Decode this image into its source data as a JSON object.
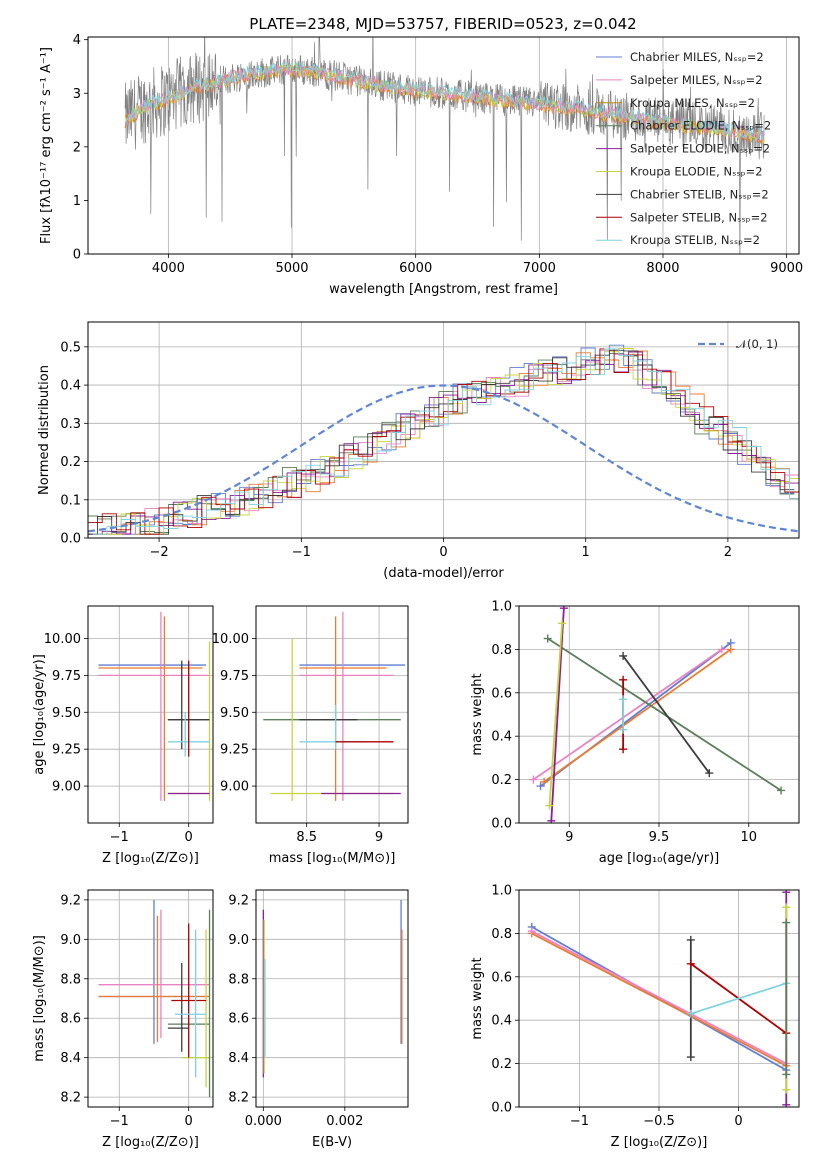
{
  "colors": {
    "chabrier_miles": "#5f7fd4",
    "salpeter_miles": "#e983c2",
    "kroupa_miles": "#b8860b",
    "chabrier_elodie": "#5a7f5a",
    "salpeter_elodie": "#8b1f9b",
    "kroupa_elodie": "#c8d43c",
    "chabrier_stelib": "#3c3c3c",
    "salpeter_stelib": "#b00000",
    "kroupa_stelib": "#7fd3e0",
    "data": "#808080",
    "fit_orange": "#ec7b2f",
    "gauss": "#5f87d4"
  },
  "chart_data": [
    {
      "id": "spectrum",
      "type": "line",
      "title": "PLATE=2348, MJD=53757, FIBERID=0523, z=0.042",
      "xlabel": "wavelength [Angstrom, rest frame]",
      "ylabel": "Flux [fλ10⁻¹⁷ erg cm⁻² s⁻¹ A⁻¹]",
      "xlim": [
        3350,
        9100
      ],
      "ylim": [
        0,
        4.05
      ],
      "xticks": [
        4000,
        5000,
        6000,
        7000,
        8000,
        9000
      ],
      "yticks": [
        0,
        1,
        2,
        3,
        4
      ],
      "legend_position": "upper-right",
      "legend": [
        "Chabrier MILES, Nₛₛₚ=2",
        "Salpeter MILES, Nₛₛₚ=2",
        "Kroupa MILES, Nₛₛₚ=2",
        "Chabrier ELODIE, Nₛₛₚ=2",
        "Salpeter ELODIE, Nₛₛₚ=2",
        "Kroupa ELODIE, Nₛₛₚ=2",
        "Chabrier STELIB, Nₛₛₚ=2",
        "Salpeter STELIB, Nₛₛₚ=2",
        "Kroupa STELIB, Nₛₛₚ=2"
      ],
      "continuum": [
        [
          3650,
          2.5
        ],
        [
          3800,
          2.75
        ],
        [
          4000,
          2.9
        ],
        [
          4200,
          3.1
        ],
        [
          4400,
          3.2
        ],
        [
          4600,
          3.35
        ],
        [
          5000,
          3.45
        ],
        [
          5200,
          3.4
        ],
        [
          5600,
          3.2
        ],
        [
          6000,
          3.05
        ],
        [
          6400,
          2.95
        ],
        [
          6800,
          2.85
        ],
        [
          7200,
          2.75
        ],
        [
          7600,
          2.6
        ],
        [
          8000,
          2.45
        ],
        [
          8400,
          2.35
        ],
        [
          8800,
          2.2
        ]
      ]
    },
    {
      "id": "residuals",
      "type": "histogram",
      "xlabel": "(data-model)/error",
      "ylabel": "Normed distribution",
      "xlim": [
        -2.5,
        2.5
      ],
      "ylim": [
        0,
        0.565
      ],
      "xticks": [
        -2,
        -1,
        0,
        1,
        2
      ],
      "yticks": [
        0.0,
        0.1,
        0.2,
        0.3,
        0.4,
        0.5
      ],
      "legend": [
        "𝒩(0, 1)"
      ],
      "bin_width": 0.1,
      "base_values": [
        0.02,
        0.025,
        0.03,
        0.035,
        0.04,
        0.045,
        0.055,
        0.065,
        0.075,
        0.085,
        0.095,
        0.105,
        0.115,
        0.13,
        0.145,
        0.16,
        0.175,
        0.19,
        0.21,
        0.23,
        0.25,
        0.27,
        0.29,
        0.31,
        0.33,
        0.35,
        0.365,
        0.38,
        0.39,
        0.4,
        0.41,
        0.42,
        0.43,
        0.44,
        0.45,
        0.46,
        0.47,
        0.465,
        0.45,
        0.43,
        0.4,
        0.37,
        0.34,
        0.31,
        0.28,
        0.25,
        0.22,
        0.19,
        0.16,
        0.13
      ]
    },
    {
      "id": "age_vs_Z",
      "type": "scatter",
      "xlabel": "Z [log₁₀(Z/Z⊙)]",
      "ylabel": "age  [log₁₀(age/yr)]",
      "xlim": [
        -1.45,
        0.35
      ],
      "ylim": [
        8.75,
        10.22
      ],
      "xticks": [
        -1,
        0
      ],
      "yticks": [
        9.0,
        9.25,
        9.5,
        9.75,
        10.0
      ],
      "points": [
        {
          "x": -0.3,
          "y": 9.82,
          "xe": [
            -1.3,
            0.25
          ],
          "ye": [
            9.82,
            9.82
          ],
          "c": "chabrier_miles"
        },
        {
          "x": -0.4,
          "y": 9.75,
          "xe": [
            -1.3,
            0.3
          ],
          "ye": [
            8.9,
            10.18
          ],
          "c": "salpeter_miles"
        },
        {
          "x": -0.35,
          "y": 9.8,
          "xe": [
            -1.3,
            0.2
          ],
          "ye": [
            8.9,
            10.15
          ],
          "c": "fit_orange"
        },
        {
          "x": 0.2,
          "y": 9.45,
          "xe": [
            -0.3,
            0.3
          ],
          "ye": [
            9.45,
            9.45
          ],
          "c": "chabrier_elodie"
        },
        {
          "x": 0.3,
          "y": 8.95,
          "xe": [
            -0.3,
            0.3
          ],
          "ye": [
            8.9,
            9.98
          ],
          "c": "kroupa_elodie"
        },
        {
          "x": -0.1,
          "y": 9.45,
          "xe": [
            -0.3,
            0.3
          ],
          "ye": [
            9.25,
            9.85
          ],
          "c": "chabrier_stelib"
        },
        {
          "x": -0.05,
          "y": 9.3,
          "xe": [
            -0.3,
            0.3
          ],
          "ye": [
            9.2,
            9.5
          ],
          "c": "kroupa_stelib"
        },
        {
          "x": 0.0,
          "y": 9.6,
          "xe": [
            0.0,
            0.0
          ],
          "ye": [
            9.2,
            9.85
          ],
          "c": "salpeter_stelib"
        },
        {
          "x": 0.0,
          "y": 8.95,
          "xe": [
            -0.3,
            0.3
          ],
          "ye": [
            8.95,
            8.95
          ],
          "c": "salpeter_elodie"
        }
      ]
    },
    {
      "id": "age_vs_mass",
      "type": "scatter",
      "xlabel": "mass [log₁₀(M/M⊙)]",
      "ylabel": "",
      "xlim": [
        8.15,
        9.2
      ],
      "ylim": [
        8.75,
        10.22
      ],
      "xticks": [
        8.5,
        9.0
      ],
      "yticks": [
        9.0,
        9.25,
        9.5,
        9.75,
        10.0
      ],
      "points": [
        {
          "x": 8.7,
          "y": 9.82,
          "xe": [
            8.45,
            9.18
          ],
          "ye": [
            9.82,
            9.82
          ],
          "c": "chabrier_miles"
        },
        {
          "x": 8.75,
          "y": 9.75,
          "xe": [
            8.45,
            9.1
          ],
          "ye": [
            8.9,
            10.18
          ],
          "c": "salpeter_miles"
        },
        {
          "x": 8.7,
          "y": 9.8,
          "xe": [
            8.45,
            9.05
          ],
          "ye": [
            8.9,
            10.15
          ],
          "c": "fit_orange"
        },
        {
          "x": 8.55,
          "y": 9.45,
          "xe": [
            8.2,
            9.15
          ],
          "ye": [
            9.45,
            9.45
          ],
          "c": "chabrier_elodie"
        },
        {
          "x": 8.4,
          "y": 8.95,
          "xe": [
            8.25,
            9.1
          ],
          "ye": [
            8.9,
            10.0
          ],
          "c": "kroupa_elodie"
        },
        {
          "x": 8.65,
          "y": 9.45,
          "xe": [
            8.45,
            8.85
          ],
          "ye": [
            9.45,
            9.45
          ],
          "c": "chabrier_stelib"
        },
        {
          "x": 8.7,
          "y": 9.3,
          "xe": [
            8.45,
            8.9
          ],
          "ye": [
            9.25,
            9.55
          ],
          "c": "kroupa_stelib"
        },
        {
          "x": 8.9,
          "y": 9.3,
          "xe": [
            8.7,
            9.1
          ],
          "ye": [
            9.3,
            9.3
          ],
          "c": "salpeter_stelib"
        },
        {
          "x": 8.85,
          "y": 8.95,
          "xe": [
            8.6,
            9.15
          ],
          "ye": [
            8.95,
            8.95
          ],
          "c": "salpeter_elodie"
        }
      ]
    },
    {
      "id": "weight_vs_age",
      "type": "line",
      "xlabel": "age  [log₁₀(age/yr)]",
      "ylabel": "mass weight",
      "xlim": [
        8.72,
        10.28
      ],
      "ylim": [
        0,
        1.0
      ],
      "xticks": [
        9.0,
        9.5,
        10.0
      ],
      "yticks": [
        0.0,
        0.2,
        0.4,
        0.6,
        0.8,
        1.0
      ],
      "series": [
        {
          "c": "chabrier_miles",
          "pts": [
            [
              8.84,
              0.17
            ],
            [
              9.9,
              0.83
            ]
          ]
        },
        {
          "c": "salpeter_miles",
          "pts": [
            [
              8.8,
              0.2
            ],
            [
              9.85,
              0.8
            ]
          ]
        },
        {
          "c": "fit_orange",
          "pts": [
            [
              8.86,
              0.19
            ],
            [
              9.9,
              0.8
            ]
          ]
        },
        {
          "c": "chabrier_elodie",
          "pts": [
            [
              8.88,
              0.85
            ],
            [
              10.18,
              0.15
            ]
          ]
        },
        {
          "c": "salpeter_elodie",
          "pts": [
            [
              8.9,
              0.01
            ],
            [
              8.97,
              0.99
            ]
          ]
        },
        {
          "c": "kroupa_elodie",
          "pts": [
            [
              8.89,
              0.08
            ],
            [
              8.96,
              0.92
            ]
          ]
        },
        {
          "c": "chabrier_stelib",
          "pts": [
            [
              9.3,
              0.77
            ],
            [
              9.78,
              0.23
            ]
          ]
        },
        {
          "c": "salpeter_stelib",
          "pts": [
            [
              9.3,
              0.34
            ],
            [
              9.3,
              0.66
            ]
          ]
        },
        {
          "c": "kroupa_stelib",
          "pts": [
            [
              9.3,
              0.43
            ],
            [
              9.3,
              0.57
            ]
          ]
        }
      ]
    },
    {
      "id": "mass_vs_Z",
      "type": "scatter",
      "xlabel": "Z [log₁₀(Z/Z⊙)]",
      "ylabel": "mass [log₁₀(M/M⊙)]",
      "xlim": [
        -1.45,
        0.35
      ],
      "ylim": [
        8.15,
        9.25
      ],
      "xticks": [
        -1,
        0
      ],
      "yticks": [
        8.2,
        8.4,
        8.6,
        8.8,
        9.0,
        9.2
      ],
      "points": [
        {
          "x": -0.5,
          "y": 8.71,
          "xe": [
            -1.3,
            0.3
          ],
          "ye": [
            8.47,
            9.2
          ],
          "c": "chabrier_miles"
        },
        {
          "x": -0.4,
          "y": 8.77,
          "xe": [
            -1.3,
            0.3
          ],
          "ye": [
            8.5,
            9.15
          ],
          "c": "salpeter_miles"
        },
        {
          "x": -0.45,
          "y": 8.71,
          "xe": [
            -1.3,
            0.3
          ],
          "ye": [
            8.48,
            9.12
          ],
          "c": "fit_orange"
        },
        {
          "x": 0.0,
          "y": 8.57,
          "xe": [
            -0.3,
            0.3
          ],
          "ye": [
            8.57,
            8.57
          ],
          "c": "chabrier_elodie"
        },
        {
          "x": 0.25,
          "y": 8.4,
          "xe": [
            -0.1,
            0.3
          ],
          "ye": [
            8.25,
            9.05
          ],
          "c": "kroupa_elodie"
        },
        {
          "x": -0.1,
          "y": 8.55,
          "xe": [
            -0.3,
            0.0
          ],
          "ye": [
            8.43,
            8.88
          ],
          "c": "chabrier_stelib"
        },
        {
          "x": 0.0,
          "y": 8.69,
          "xe": [
            -0.25,
            0.25
          ],
          "ye": [
            8.4,
            9.08
          ],
          "c": "salpeter_stelib"
        },
        {
          "x": 0.1,
          "y": 8.62,
          "xe": [
            -0.2,
            0.25
          ],
          "ye": [
            8.3,
            9.05
          ],
          "c": "kroupa_stelib"
        },
        {
          "x": 0.3,
          "y": 8.3,
          "xe": [
            0.3,
            0.3
          ],
          "ye": [
            8.2,
            9.15
          ],
          "c": "chabrier_elodie"
        }
      ]
    },
    {
      "id": "mass_vs_ebv",
      "type": "scatter",
      "xlabel": "E(B-V)",
      "ylabel": "",
      "xlim": [
        -0.00018,
        0.00355
      ],
      "ylim": [
        8.15,
        9.25
      ],
      "xticks": [
        0.0,
        0.002
      ],
      "xticklabels": [
        "0.000",
        "0.002"
      ],
      "yticks": [
        8.2,
        8.4,
        8.6,
        8.8,
        9.0,
        9.2
      ],
      "points": [
        {
          "x": 0.0,
          "y": 8.8,
          "xe": [
            0.0,
            0.0
          ],
          "ye": [
            8.3,
            9.15
          ],
          "c": "salpeter_elodie"
        },
        {
          "x": 2e-05,
          "y": 8.6,
          "xe": [
            2e-05,
            2e-05
          ],
          "ye": [
            8.32,
            9.1
          ],
          "c": "kroupa_elodie"
        },
        {
          "x": 4e-05,
          "y": 8.5,
          "xe": [
            4e-05,
            4e-05
          ],
          "ye": [
            8.4,
            8.9
          ],
          "c": "kroupa_stelib"
        },
        {
          "x": 0.00338,
          "y": 8.7,
          "xe": [
            0.00338,
            0.00338
          ],
          "ye": [
            8.47,
            9.2
          ],
          "c": "chabrier_miles"
        },
        {
          "x": 0.0034,
          "y": 8.7,
          "xe": [
            0.0034,
            0.0034
          ],
          "ye": [
            8.47,
            9.05
          ],
          "c": "fit_orange"
        }
      ]
    },
    {
      "id": "weight_vs_Z",
      "type": "line",
      "xlabel": "Z [log₁₀(Z/Z⊙)]",
      "ylabel": "mass weight",
      "xlim": [
        -1.38,
        0.38
      ],
      "ylim": [
        0,
        1.0
      ],
      "xticks": [
        -1.0,
        -0.5,
        0.0
      ],
      "yticks": [
        0.0,
        0.2,
        0.4,
        0.6,
        0.8,
        1.0
      ],
      "series": [
        {
          "c": "chabrier_miles",
          "pts": [
            [
              -1.3,
              0.83
            ],
            [
              0.3,
              0.17
            ]
          ]
        },
        {
          "c": "fit_orange",
          "pts": [
            [
              -1.3,
              0.8
            ],
            [
              0.3,
              0.19
            ]
          ]
        },
        {
          "c": "salpeter_miles",
          "pts": [
            [
              -1.3,
              0.81
            ],
            [
              0.3,
              0.2
            ]
          ]
        },
        {
          "c": "chabrier_stelib",
          "pts": [
            [
              -0.3,
              0.23
            ],
            [
              -0.3,
              0.77
            ]
          ]
        },
        {
          "c": "salpeter_stelib",
          "pts": [
            [
              -0.3,
              0.66
            ],
            [
              0.3,
              0.34
            ]
          ]
        },
        {
          "c": "kroupa_stelib",
          "pts": [
            [
              -0.3,
              0.43
            ],
            [
              0.3,
              0.57
            ]
          ]
        },
        {
          "c": "salpeter_elodie",
          "pts": [
            [
              0.3,
              0.01
            ],
            [
              0.3,
              0.99
            ]
          ]
        },
        {
          "c": "kroupa_elodie",
          "pts": [
            [
              0.3,
              0.08
            ],
            [
              0.3,
              0.92
            ]
          ]
        },
        {
          "c": "chabrier_elodie",
          "pts": [
            [
              0.3,
              0.15
            ],
            [
              0.3,
              0.85
            ]
          ]
        }
      ]
    }
  ]
}
